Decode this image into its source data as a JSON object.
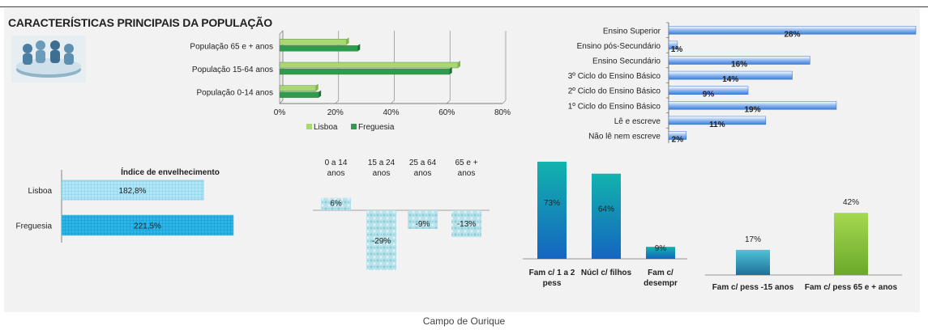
{
  "title": "CARACTERÍSTICAS PRINCIPAIS DA POPULAÇÃO",
  "footer": "Campo de Ourique",
  "logo_icon": "people-crowd-icon",
  "colors": {
    "lisboa": "#a9d873",
    "freguesia": "#2e9b4e",
    "education": "#3c7ddb",
    "teal": "#12b3ad",
    "blue": "#1565c0",
    "green": "#8cc63f",
    "aging_light": "#b3e5f5",
    "aging_dark": "#2ab6e8"
  },
  "chart_data": [
    {
      "id": "population",
      "type": "bar",
      "orientation": "horizontal",
      "categories": [
        "População 65 e + anos",
        "População 15-64 anos",
        "População 0-14 anos"
      ],
      "series": [
        {
          "name": "Lisboa",
          "values": [
            24,
            64,
            13
          ]
        },
        {
          "name": "Freguesia",
          "values": [
            28,
            61,
            14
          ]
        }
      ],
      "xlim": [
        0,
        80
      ],
      "xticks": [
        "0%",
        "20%",
        "40%",
        "60%",
        "80%"
      ],
      "legend": "bottom"
    },
    {
      "id": "education",
      "type": "bar",
      "orientation": "horizontal",
      "categories": [
        "Ensino Superior",
        "Ensino pós-Secundário",
        "Ensino Secundário",
        "3º Ciclo do Ensino Básico",
        "2º Ciclo do Ensino Básico",
        "1º Ciclo do Ensino Básico",
        "Lê e escreve",
        "Não lê nem escreve"
      ],
      "values": [
        28,
        1,
        16,
        14,
        9,
        19,
        11,
        2
      ],
      "data_labels": [
        "28%",
        "1%",
        "16%",
        "14%",
        "9%",
        "19%",
        "11%",
        "2%"
      ],
      "xlim": [
        0,
        28
      ]
    },
    {
      "id": "aging",
      "type": "bar",
      "orientation": "horizontal",
      "title": "Índice de envelhecimento",
      "categories": [
        "Lisboa",
        "Freguesia"
      ],
      "values": [
        182.8,
        221.5
      ],
      "data_labels": [
        "182,8%",
        "221,5%"
      ]
    },
    {
      "id": "age-change",
      "type": "bar",
      "categories": [
        "0 a 14 anos",
        "15 a 24 anos",
        "25 a 64 anos",
        "65 e + anos"
      ],
      "category_lines": [
        [
          "0 a 14",
          "anos"
        ],
        [
          "15 a 24",
          "anos"
        ],
        [
          "25 a 64",
          "anos"
        ],
        [
          "65 e +",
          "anos"
        ]
      ],
      "values": [
        6,
        -29,
        -9,
        -13
      ],
      "data_labels": [
        "6%",
        "-29%",
        "-9%",
        "-13%"
      ]
    },
    {
      "id": "families",
      "type": "bar",
      "categories": [
        "Fam c/ 1 a 2 pess",
        "Núcl c/ filhos",
        "Fam c/ desempr"
      ],
      "category_lines": [
        [
          "Fam c/ 1 a 2",
          "pess"
        ],
        [
          "Núcl c/ filhos"
        ],
        [
          "Fam c/",
          "desempr"
        ]
      ],
      "values": [
        73,
        64,
        9
      ],
      "data_labels": [
        "73%",
        "64%",
        "9%"
      ]
    },
    {
      "id": "households",
      "type": "bar",
      "categories": [
        "Fam c/ pess -15 anos",
        "Fam c/ pess 65 e + anos"
      ],
      "values": [
        17,
        42
      ],
      "data_labels": [
        "17%",
        "42%"
      ]
    }
  ]
}
